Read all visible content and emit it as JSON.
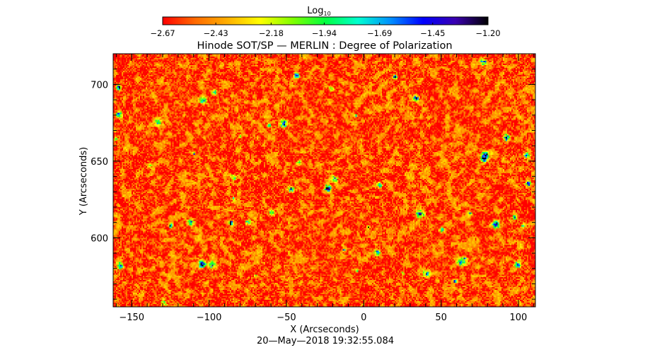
{
  "chart_data": {
    "type": "heatmap",
    "title": "Hinode SOT/SP — MERLIN : Degree of Polarization",
    "xlabel": "X (Arcseconds)",
    "ylabel": "Y (Arcseconds)",
    "timestamp": "20—May—2018 19:32:55.084",
    "xlim": [
      -162,
      111
    ],
    "ylim": [
      555,
      720
    ],
    "x_ticks": [
      -150,
      -100,
      -50,
      0,
      50,
      100
    ],
    "x_tick_labels": [
      "−150",
      "−100",
      "−50",
      "0",
      "50",
      "100"
    ],
    "y_ticks": [
      600,
      650,
      700
    ],
    "y_tick_labels": [
      "600",
      "650",
      "700"
    ],
    "colorbar": {
      "label": "Log",
      "label_subscript": "10",
      "min": -2.67,
      "max": -1.2,
      "ticks": [
        -2.67,
        -2.43,
        -2.18,
        -1.94,
        -1.69,
        -1.45,
        -1.2
      ],
      "tick_labels": [
        "−2.67",
        "−2.43",
        "−2.18",
        "−1.94",
        "−1.69",
        "−1.45",
        "−1.20"
      ],
      "colors": [
        "#ff0000",
        "#ff6a00",
        "#ffb000",
        "#ffff00",
        "#80ff00",
        "#00ff40",
        "#00ffd0",
        "#0090ff",
        "#0000ff",
        "#3a00b0",
        "#000000"
      ]
    },
    "field_description": "granular-scale speckle, background mostly -2.6 to -2.4, scattered patches up to about -1.3",
    "grid": false
  }
}
